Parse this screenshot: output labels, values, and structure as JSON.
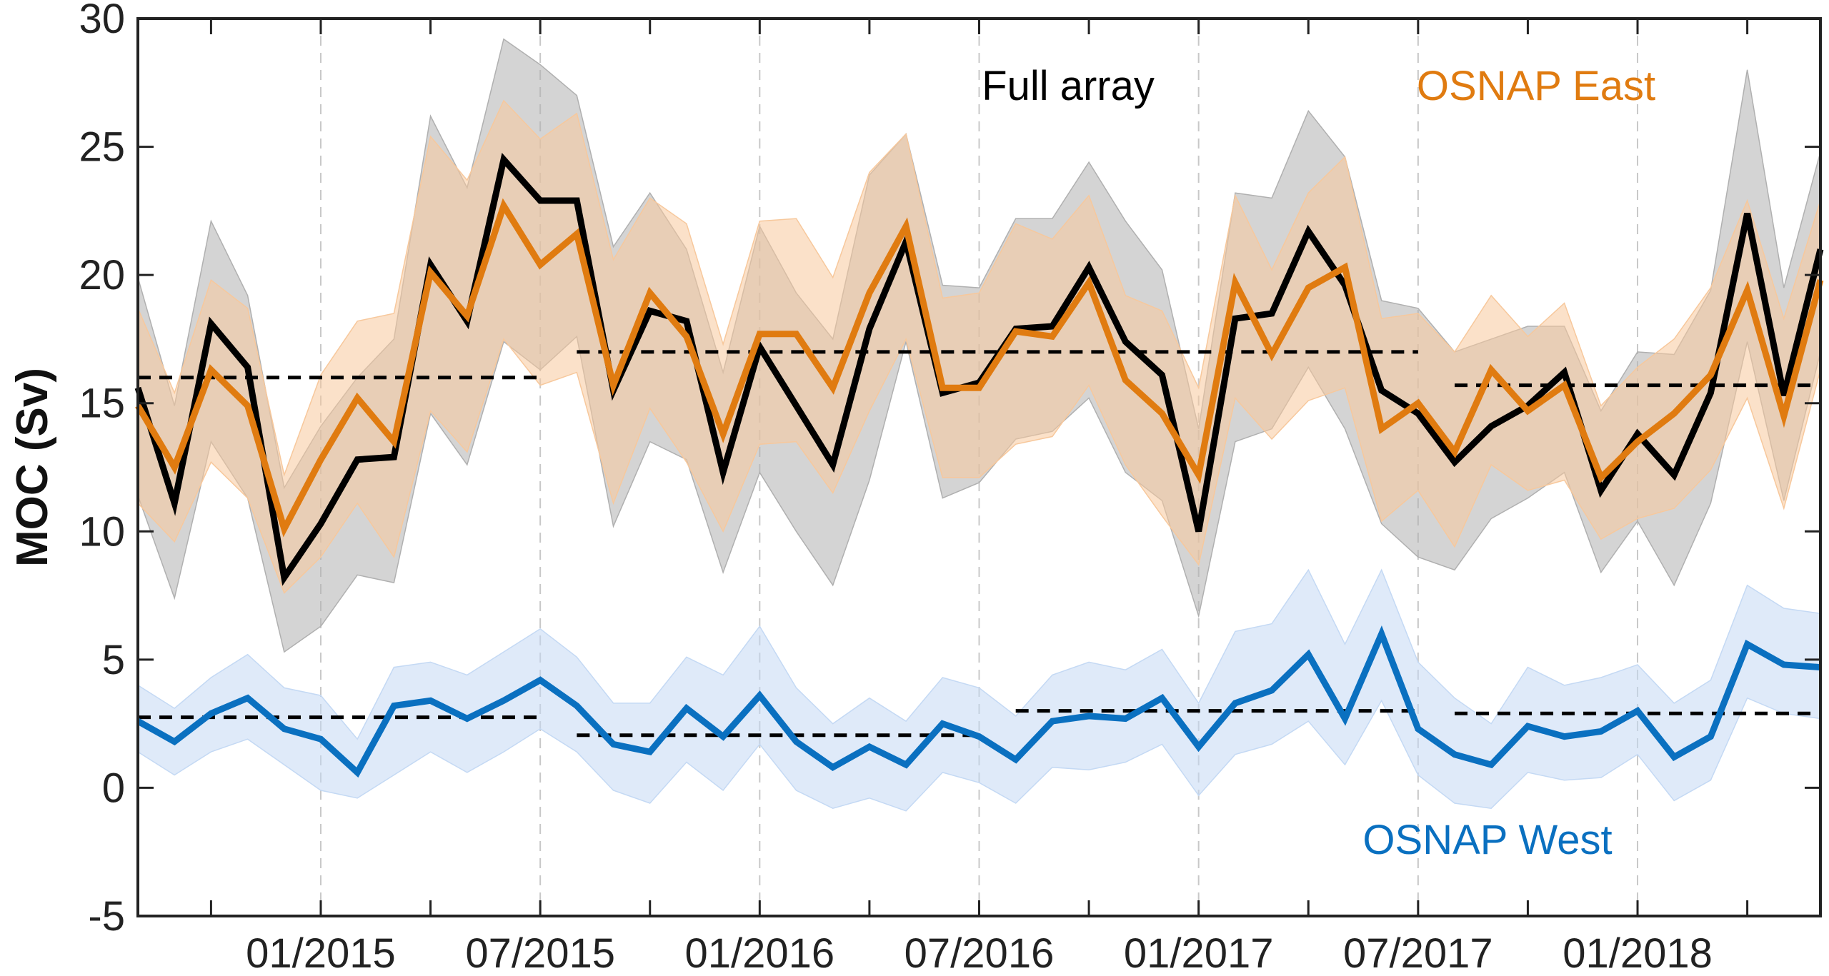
{
  "chart_data": {
    "type": "line",
    "x_unit": "month",
    "x": [
      "2014-08",
      "2014-09",
      "2014-10",
      "2014-11",
      "2014-12",
      "2015-01",
      "2015-02",
      "2015-03",
      "2015-04",
      "2015-05",
      "2015-06",
      "2015-07",
      "2015-08",
      "2015-09",
      "2015-10",
      "2015-11",
      "2015-12",
      "2016-01",
      "2016-02",
      "2016-03",
      "2016-04",
      "2016-05",
      "2016-06",
      "2016-07",
      "2016-08",
      "2016-09",
      "2016-10",
      "2016-11",
      "2016-12",
      "2017-01",
      "2017-02",
      "2017-03",
      "2017-04",
      "2017-05",
      "2017-06",
      "2017-07",
      "2017-08",
      "2017-09",
      "2017-10",
      "2017-11",
      "2017-12",
      "2018-01",
      "2018-02",
      "2018-03",
      "2018-04",
      "2018-05",
      "2018-06"
    ],
    "xtick_labels": [
      "01/2015",
      "07/2015",
      "01/2016",
      "07/2016",
      "01/2017",
      "07/2017",
      "01/2018"
    ],
    "xtick_dates": [
      "2015-01",
      "2015-07",
      "2016-01",
      "2016-07",
      "2017-01",
      "2017-07",
      "2018-01"
    ],
    "xlim": [
      "2014-08",
      "2018-06"
    ],
    "ylabel": "MOC (Sv)",
    "ylim": [
      -5,
      30
    ],
    "yticks": [
      -5,
      0,
      5,
      10,
      15,
      20,
      25,
      30
    ],
    "ytick_labels": [
      "-5",
      "0",
      "5",
      "10",
      "15",
      "20",
      "25",
      "30"
    ],
    "grid": "vertical dashed at Jan of each year",
    "series": [
      {
        "name": "Full array",
        "color": "#000000",
        "band_color": "#b0b0b0",
        "values": [
          15.6,
          11.1,
          18.1,
          16.4,
          8.2,
          10.3,
          12.8,
          12.9,
          20.4,
          18.2,
          24.5,
          22.9,
          22.9,
          15.5,
          18.6,
          18.2,
          12.3,
          17.2,
          14.9,
          12.6,
          17.9,
          21.3,
          15.4,
          15.8,
          17.9,
          18.0,
          20.3,
          17.4,
          16.1,
          10.0,
          18.3,
          18.5,
          21.7,
          19.6,
          15.5,
          14.6,
          12.7,
          14.1,
          14.9,
          16.2,
          11.6,
          13.8,
          12.2,
          15.4,
          22.4,
          15.3,
          21.0
        ],
        "lower": [
          11.4,
          7.4,
          13.5,
          11.3,
          5.3,
          6.3,
          8.3,
          8.0,
          14.6,
          12.6,
          17.4,
          16.3,
          17.6,
          10.2,
          13.5,
          12.8,
          8.4,
          12.3,
          10.0,
          7.9,
          12.0,
          17.4,
          11.3,
          11.9,
          13.6,
          13.9,
          15.2,
          12.3,
          11.2,
          6.7,
          13.5,
          14.0,
          16.4,
          14.0,
          10.3,
          9.0,
          8.5,
          10.5,
          11.3,
          12.3,
          8.4,
          10.4,
          7.9,
          11.1,
          17.4,
          11.2,
          17.0
        ],
        "upper": [
          19.9,
          14.9,
          22.1,
          19.2,
          11.7,
          14.1,
          16.0,
          17.5,
          26.2,
          23.4,
          29.2,
          28.2,
          27.0,
          21.1,
          23.2,
          21.0,
          16.2,
          21.9,
          19.3,
          17.5,
          23.9,
          25.5,
          19.6,
          19.5,
          22.2,
          22.2,
          24.4,
          22.1,
          20.2,
          14.0,
          23.2,
          23.0,
          26.4,
          24.6,
          19.0,
          18.7,
          17.0,
          17.5,
          18.0,
          18.0,
          14.7,
          17.0,
          16.9,
          19.4,
          28.0,
          19.5,
          24.8
        ]
      },
      {
        "name": "OSNAP East",
        "color": "#e07b10",
        "band_color": "#f7c89c",
        "values": [
          14.9,
          12.5,
          16.3,
          14.9,
          10.1,
          12.8,
          15.2,
          13.5,
          20.1,
          18.4,
          22.7,
          20.4,
          21.6,
          15.7,
          19.3,
          17.6,
          13.8,
          17.7,
          17.7,
          15.6,
          19.3,
          21.9,
          15.6,
          15.6,
          17.8,
          17.6,
          19.7,
          15.9,
          14.6,
          12.2,
          19.7,
          16.9,
          19.5,
          20.3,
          14.0,
          15.0,
          13.1,
          16.3,
          14.7,
          15.7,
          12.1,
          13.5,
          14.6,
          16.1,
          19.4,
          14.5,
          19.8
        ],
        "lower": [
          11.1,
          9.6,
          12.7,
          11.3,
          7.6,
          9.0,
          11.1,
          9.0,
          14.7,
          13.1,
          17.5,
          15.7,
          16.2,
          11.1,
          14.8,
          12.7,
          10.0,
          13.4,
          13.5,
          11.5,
          14.7,
          17.5,
          12.1,
          12.1,
          13.4,
          13.7,
          15.7,
          12.6,
          10.6,
          8.7,
          15.2,
          13.6,
          15.1,
          15.6,
          10.4,
          11.6,
          9.4,
          12.6,
          11.6,
          12.0,
          9.7,
          10.5,
          10.9,
          12.4,
          15.2,
          10.9,
          16.3
        ],
        "upper": [
          18.7,
          15.4,
          19.8,
          18.7,
          12.2,
          16.1,
          18.2,
          18.5,
          25.4,
          23.7,
          26.8,
          25.3,
          26.3,
          20.6,
          23.0,
          22.0,
          17.3,
          22.1,
          22.2,
          19.9,
          24.0,
          25.5,
          19.1,
          19.3,
          22.0,
          21.4,
          23.1,
          19.2,
          18.6,
          15.6,
          23.1,
          20.2,
          23.2,
          24.6,
          18.3,
          18.5,
          17.0,
          19.2,
          17.6,
          18.9,
          14.9,
          16.4,
          17.5,
          19.5,
          22.9,
          18.3,
          22.9
        ]
      },
      {
        "name": "OSNAP West",
        "color": "#0a70c0",
        "band_color": "#c4d9f4",
        "values": [
          2.6,
          1.8,
          2.9,
          3.5,
          2.3,
          1.9,
          0.6,
          3.2,
          3.4,
          2.7,
          3.4,
          4.2,
          3.2,
          1.7,
          1.4,
          3.1,
          2.0,
          3.6,
          1.8,
          0.8,
          1.6,
          0.9,
          2.5,
          2.0,
          1.1,
          2.6,
          2.8,
          2.7,
          3.5,
          1.6,
          3.3,
          3.8,
          5.2,
          2.7,
          6.0,
          2.3,
          1.3,
          0.9,
          2.4,
          2.0,
          2.2,
          3.0,
          1.2,
          2.0,
          5.6,
          4.8,
          4.7
        ],
        "lower": [
          1.4,
          0.5,
          1.4,
          1.9,
          0.9,
          -0.1,
          -0.4,
          0.5,
          1.4,
          0.6,
          1.4,
          2.3,
          1.4,
          -0.1,
          -0.6,
          1.0,
          -0.1,
          1.7,
          -0.1,
          -0.8,
          -0.4,
          -0.9,
          0.6,
          0.2,
          -0.6,
          0.8,
          0.7,
          1.0,
          1.7,
          -0.3,
          1.3,
          1.7,
          2.6,
          0.9,
          3.4,
          0.5,
          -0.6,
          -0.8,
          0.6,
          0.3,
          0.4,
          1.3,
          -0.5,
          0.3,
          3.5,
          2.9,
          2.7
        ],
        "upper": [
          4.0,
          3.1,
          4.3,
          5.2,
          3.9,
          3.6,
          1.9,
          4.7,
          4.9,
          4.4,
          5.3,
          6.2,
          5.1,
          3.3,
          3.3,
          5.1,
          4.4,
          6.3,
          3.9,
          2.5,
          3.5,
          2.6,
          4.3,
          3.9,
          2.8,
          4.4,
          4.9,
          4.6,
          5.4,
          3.3,
          6.1,
          6.4,
          8.5,
          5.6,
          8.5,
          4.9,
          3.5,
          2.5,
          4.7,
          4.0,
          4.3,
          4.8,
          3.3,
          4.2,
          7.9,
          7.0,
          6.8
        ]
      }
    ],
    "mean_lines": [
      {
        "group": "Full array",
        "from": "2014-08",
        "to": "2015-07",
        "value": 16.0
      },
      {
        "group": "Full array",
        "from": "2015-08",
        "to": "2017-07",
        "value": 17.0
      },
      {
        "group": "Full array",
        "from": "2017-08",
        "to": "2018-06",
        "value": 15.7
      },
      {
        "group": "OSNAP West",
        "from": "2014-08",
        "to": "2015-07",
        "value": 2.75
      },
      {
        "group": "OSNAP West",
        "from": "2015-08",
        "to": "2016-07",
        "value": 2.05
      },
      {
        "group": "OSNAP West",
        "from": "2016-08",
        "to": "2017-07",
        "value": 3.0
      },
      {
        "group": "OSNAP West",
        "from": "2017-08",
        "to": "2018-06",
        "value": 2.9
      }
    ],
    "legend": [
      {
        "text": "Full array",
        "color": "#000000",
        "placement": "top-center"
      },
      {
        "text": "OSNAP East",
        "color": "#e07b10",
        "placement": "top-right"
      },
      {
        "text": "OSNAP West",
        "color": "#0a70c0",
        "placement": "bottom-right"
      }
    ]
  }
}
